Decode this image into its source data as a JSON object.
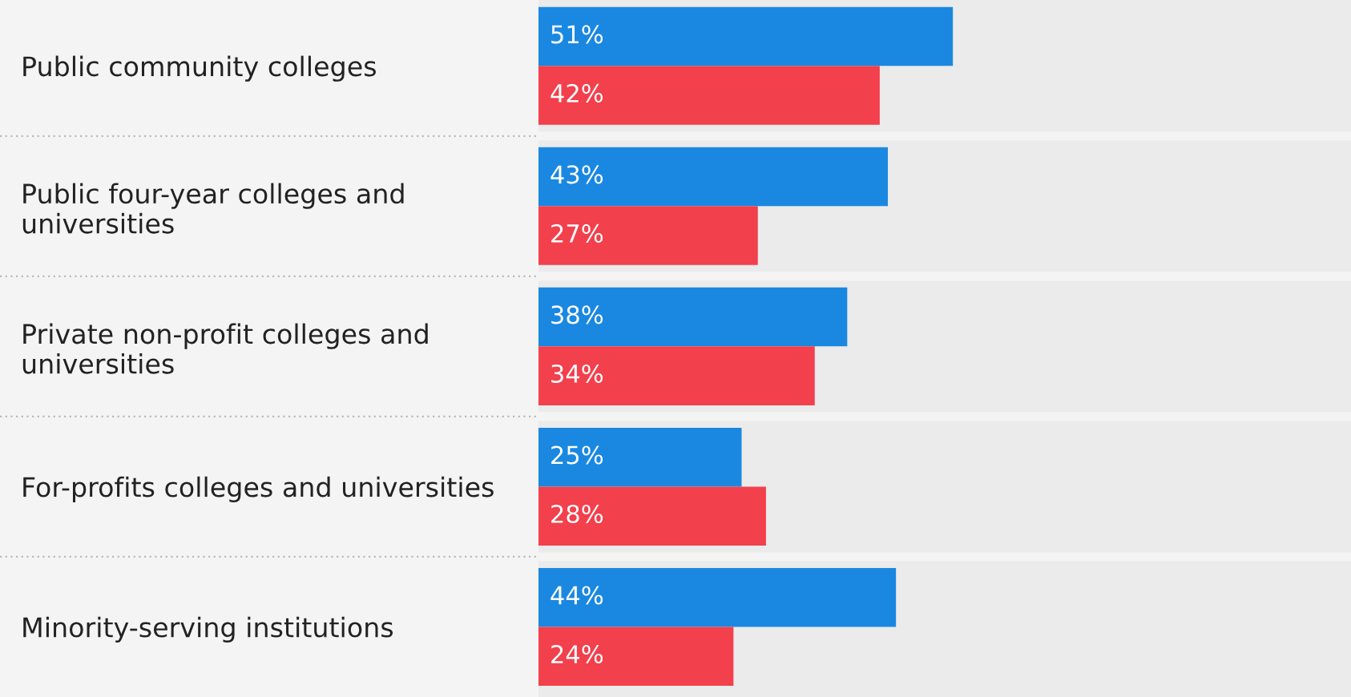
{
  "chart_data": {
    "type": "bar",
    "orientation": "horizontal",
    "categories": [
      "Public community colleges",
      "Public four-year colleges and\nuniversities",
      "Private non-profit colleges and\nuniversities",
      "For-profits colleges and universities",
      "Minority-serving institutions"
    ],
    "series": [
      {
        "color": "#1a88e1",
        "values": [
          51,
          43,
          38,
          25,
          44
        ],
        "value_labels": [
          "51%",
          "43%",
          "38%",
          "25%",
          "44%"
        ]
      },
      {
        "color": "#f2404c",
        "values": [
          42,
          27,
          34,
          28,
          24
        ],
        "value_labels": [
          "42%",
          "27%",
          "34%",
          "28%",
          "24%"
        ]
      }
    ],
    "xlim": [
      0,
      100
    ],
    "tick_labels": "y",
    "grid": false,
    "legend": false
  }
}
